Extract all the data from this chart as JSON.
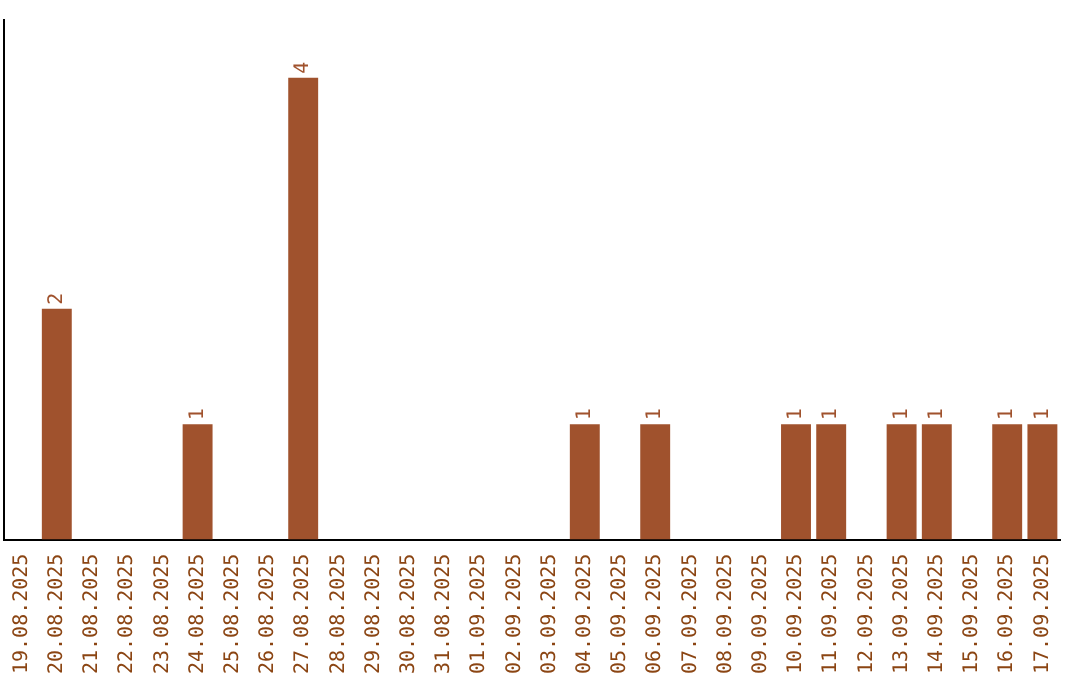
{
  "chart_data": {
    "type": "bar",
    "categories": [
      "19.08.2025",
      "20.08.2025",
      "21.08.2025",
      "22.08.2025",
      "23.08.2025",
      "24.08.2025",
      "25.08.2025",
      "26.08.2025",
      "27.08.2025",
      "28.08.2025",
      "29.08.2025",
      "30.08.2025",
      "31.08.2025",
      "01.09.2025",
      "02.09.2025",
      "03.09.2025",
      "04.09.2025",
      "05.09.2025",
      "06.09.2025",
      "07.09.2025",
      "08.09.2025",
      "09.09.2025",
      "10.09.2025",
      "11.09.2025",
      "12.09.2025",
      "13.09.2025",
      "14.09.2025",
      "15.09.2025",
      "16.09.2025",
      "17.09.2025"
    ],
    "values": [
      0,
      2,
      0,
      0,
      0,
      1,
      0,
      0,
      4,
      0,
      0,
      0,
      0,
      0,
      0,
      0,
      1,
      0,
      1,
      0,
      0,
      0,
      1,
      1,
      0,
      1,
      1,
      0,
      1,
      1
    ],
    "value_labels": [
      null,
      "2",
      null,
      null,
      null,
      "1",
      null,
      null,
      "4",
      null,
      null,
      null,
      null,
      null,
      null,
      null,
      "1",
      null,
      "1",
      null,
      null,
      null,
      "1",
      "1",
      null,
      "1",
      "1",
      null,
      "1",
      "1"
    ],
    "color": "#a0522d",
    "tick_labels": "x",
    "grid": false,
    "legend": false
  }
}
